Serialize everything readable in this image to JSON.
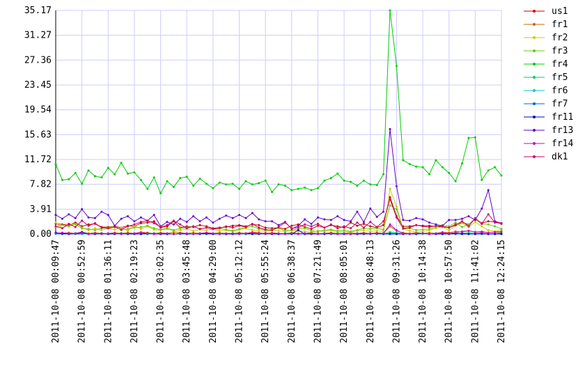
{
  "chart_data": {
    "type": "line",
    "categories": [
      "2011-10-08 00:09:47",
      null,
      null,
      null,
      "2011-10-08 00:52:59",
      null,
      null,
      null,
      "2011-10-08 01:36:11",
      null,
      null,
      null,
      "2011-10-08 02:19:23",
      null,
      null,
      null,
      "2011-10-08 03:02:35",
      null,
      null,
      null,
      "2011-10-08 03:45:48",
      null,
      null,
      null,
      "2011-10-08 04:29:00",
      null,
      null,
      null,
      "2011-10-08 05:12:12",
      null,
      null,
      null,
      "2011-10-08 05:55:24",
      null,
      null,
      null,
      "2011-10-08 06:38:37",
      null,
      null,
      null,
      "2011-10-08 07:21:49",
      null,
      null,
      null,
      "2011-10-08 08:05:01",
      null,
      null,
      null,
      "2011-10-08 08:48:13",
      null,
      null,
      null,
      "2011-10-08 09:31:26",
      null,
      null,
      null,
      "2011-10-08 10:14:38",
      null,
      null,
      null,
      "2011-10-08 10:57:50",
      null,
      null,
      null,
      "2011-10-08 11:41:02",
      null,
      null,
      null,
      "2011-10-08 12:24:15"
    ],
    "ylim": [
      0,
      35.17
    ],
    "yticks": [
      {
        "value": 0,
        "label": "0.00"
      },
      3.91,
      7.82,
      11.72,
      15.63,
      19.54,
      23.45,
      27.36,
      31.27,
      35.17
    ],
    "grid": true,
    "series": [
      {
        "name": "us1",
        "color": "#cc0000",
        "values": [
          1.6,
          1.5,
          1.4,
          1.8,
          1.2,
          1.5,
          1.6,
          1.1,
          1.1,
          1.2,
          1.0,
          1.3,
          1.2,
          1.7,
          1.8,
          2.0,
          1.0,
          1.2,
          2.0,
          1.0,
          1.2,
          1.1,
          1.4,
          1.2,
          0.9,
          1.0,
          1.1,
          1.3,
          1.4,
          1.2,
          1.5,
          1.4,
          1.0,
          0.9,
          1.0,
          0.8,
          1.3,
          1.5,
          1.1,
          0.8,
          1.3,
          1.0,
          1.4,
          1.2,
          1.0,
          1.8,
          1.3,
          1.6,
          1.2,
          1.0,
          1.4,
          5.8,
          2.8,
          1.2,
          1.2,
          1.4,
          1.3,
          1.3,
          1.2,
          1.1,
          1.0,
          1.5,
          1.8,
          1.5,
          2.4,
          1.7,
          2.0,
          1.9,
          1.6
        ]
      },
      {
        "name": "fr1",
        "color": "#cc6600",
        "values": [
          0.2,
          0.1,
          0.2,
          0.1,
          0.3,
          0.1,
          0.2,
          0.1,
          0.1,
          0.2,
          0.1,
          0.2,
          0.1,
          0.3,
          0.2,
          0.1,
          0.2,
          0.1,
          0.3,
          0.2,
          0.1,
          0.2,
          0.1,
          0.2,
          0.1,
          0.2,
          0.1,
          0.1,
          0.2,
          0.1,
          0.3,
          0.2,
          0.1,
          0.2,
          0.1,
          0.1,
          0.2,
          0.1,
          0.1,
          0.2,
          0.1,
          0.1,
          0.2,
          0.1,
          0.1,
          0.2,
          0.1,
          0.2,
          0.1,
          0.2,
          0.1,
          1.2,
          0.5,
          0.2,
          0.1,
          0.2,
          0.1,
          0.2,
          0.1,
          0.3,
          0.2,
          0.4,
          0.3,
          0.5,
          0.3,
          0.4,
          0.2,
          0.3,
          0.2
        ]
      },
      {
        "name": "fr2",
        "color": "#cccc00",
        "values": [
          1.8,
          0.9,
          1.6,
          1.5,
          1.0,
          0.6,
          0.9,
          0.6,
          0.9,
          0.7,
          1.0,
          0.5,
          1.3,
          0.8,
          1.2,
          0.7,
          0.6,
          0.8,
          0.5,
          0.6,
          0.8,
          0.5,
          0.7,
          0.6,
          0.8,
          0.5,
          0.6,
          0.4,
          0.7,
          0.9,
          0.6,
          0.5,
          0.4,
          0.6,
          0.5,
          0.4,
          0.6,
          0.5,
          0.4,
          0.3,
          0.5,
          0.4,
          0.6,
          0.3,
          0.4,
          0.3,
          0.5,
          0.6,
          0.4,
          0.5,
          0.4,
          7.1,
          4.3,
          0.8,
          0.5,
          0.3,
          0.4,
          0.6,
          0.9,
          1.1,
          0.6,
          1.3,
          1.7,
          1.1,
          1.9,
          1.2,
          0.6,
          0.4,
          0.7
        ]
      },
      {
        "name": "fr3",
        "color": "#66cc00",
        "values": [
          1.1,
          1.4,
          1.2,
          1.6,
          0.9,
          0.8,
          0.6,
          0.9,
          1.0,
          1.2,
          0.6,
          0.8,
          1.0,
          1.1,
          1.3,
          0.9,
          0.7,
          0.9,
          0.6,
          0.9,
          1.0,
          1.2,
          0.8,
          1.0,
          0.8,
          0.9,
          0.7,
          0.5,
          0.8,
          1.0,
          1.2,
          0.8,
          0.6,
          0.7,
          0.9,
          0.5,
          0.6,
          0.8,
          0.9,
          0.5,
          0.4,
          0.6,
          0.7,
          0.5,
          0.6,
          0.4,
          0.6,
          0.9,
          0.8,
          0.9,
          0.7,
          4.5,
          3.9,
          0.8,
          0.9,
          0.6,
          0.7,
          0.8,
          1.1,
          1.4,
          1.2,
          1.8,
          1.1,
          1.5,
          2.3,
          1.6,
          1.5,
          1.2,
          0.8
        ]
      },
      {
        "name": "fr4",
        "color": "#00cc00",
        "values": [
          11.0,
          8.5,
          8.6,
          9.6,
          7.9,
          10.0,
          9.1,
          8.9,
          10.4,
          9.4,
          11.2,
          9.5,
          9.7,
          8.5,
          7.1,
          8.9,
          6.4,
          8.3,
          7.4,
          8.8,
          9.0,
          7.6,
          8.7,
          7.9,
          7.2,
          8.1,
          7.8,
          7.9,
          7.1,
          8.3,
          7.8,
          8.0,
          8.4,
          6.6,
          7.8,
          7.6,
          6.9,
          7.1,
          7.3,
          6.9,
          7.2,
          8.4,
          8.8,
          9.5,
          8.4,
          8.2,
          7.6,
          8.4,
          7.8,
          7.7,
          9.4,
          35.17,
          26.4,
          11.6,
          11.0,
          10.6,
          10.5,
          9.4,
          11.6,
          10.5,
          9.6,
          8.3,
          11.1,
          15.1,
          15.2,
          8.5,
          10.0,
          10.5,
          9.2
        ]
      },
      {
        "name": "fr5",
        "color": "#00cc66",
        "values": [
          0.1,
          0.1,
          0.0,
          0.1,
          0.1,
          0.0,
          0.1,
          0.0,
          0.1,
          0.1,
          0.0,
          0.1,
          0.1,
          0.0,
          0.1,
          0.1,
          0.0,
          0.1,
          0.0,
          0.1,
          0.1,
          0.0,
          0.1,
          0.1,
          0.0,
          0.1,
          0.0,
          0.1,
          0.1,
          0.0,
          0.1,
          0.1,
          0.0,
          0.1,
          0.0,
          0.1,
          0.1,
          0.0,
          0.1,
          0.1,
          0.0,
          0.1,
          0.0,
          0.1,
          0.1,
          0.0,
          0.1,
          0.1,
          0.0,
          0.1,
          0.1,
          0.3,
          0.2,
          0.1,
          0.0,
          0.1,
          0.1,
          0.0,
          0.1,
          0.1,
          0.0,
          0.1,
          0.1,
          0.2,
          0.1,
          0.1,
          0.0,
          0.1,
          0.1
        ]
      },
      {
        "name": "fr6",
        "color": "#00cccc",
        "values": [
          0.0,
          0.0,
          0.0,
          0.1,
          0.0,
          0.0,
          0.0,
          0.0,
          0.0,
          0.0,
          0.0,
          0.0,
          0.1,
          0.0,
          0.0,
          0.0,
          0.0,
          0.0,
          0.0,
          0.0,
          0.0,
          0.0,
          0.0,
          0.0,
          0.0,
          0.1,
          0.0,
          0.0,
          0.0,
          0.0,
          0.0,
          0.0,
          0.0,
          0.0,
          0.0,
          0.0,
          0.0,
          0.0,
          0.1,
          0.0,
          0.0,
          0.0,
          0.0,
          0.0,
          0.0,
          0.0,
          0.0,
          0.0,
          0.0,
          0.0,
          0.0,
          0.1,
          0.1,
          0.0,
          0.0,
          0.0,
          0.0,
          0.0,
          0.0,
          0.0,
          0.0,
          0.0,
          0.0,
          0.1,
          0.0,
          0.0,
          0.0,
          0.0,
          0.0
        ]
      },
      {
        "name": "fr7",
        "color": "#0066cc",
        "values": [
          0.1,
          0.0,
          0.0,
          0.0,
          0.1,
          0.0,
          0.0,
          0.0,
          0.0,
          0.1,
          0.0,
          0.0,
          0.0,
          0.0,
          0.0,
          0.1,
          0.0,
          0.0,
          0.0,
          0.0,
          0.0,
          0.0,
          0.1,
          0.0,
          0.0,
          0.0,
          0.0,
          0.0,
          0.1,
          0.0,
          0.0,
          0.0,
          0.0,
          0.0,
          0.0,
          0.1,
          0.0,
          0.0,
          0.0,
          0.0,
          0.0,
          0.1,
          0.0,
          0.0,
          0.0,
          0.0,
          0.0,
          0.0,
          0.1,
          0.0,
          0.0,
          0.1,
          0.0,
          0.0,
          0.0,
          0.0,
          0.1,
          0.0,
          0.0,
          0.0,
          0.0,
          0.0,
          0.1,
          0.0,
          0.0,
          0.0,
          0.0,
          0.0,
          0.1
        ]
      },
      {
        "name": "fr11",
        "color": "#0000cc",
        "values": [
          0.2,
          0.1,
          0.0,
          0.1,
          0.3,
          0.0,
          0.0,
          0.1,
          0.0,
          0.0,
          0.1,
          0.0,
          0.0,
          0.0,
          0.1,
          0.0,
          0.0,
          0.0,
          0.0,
          0.1,
          0.0,
          0.0,
          0.0,
          0.1,
          0.0,
          0.0,
          0.0,
          0.0,
          0.0,
          0.1,
          0.0,
          0.0,
          0.1,
          0.0,
          0.0,
          0.0,
          0.0,
          0.6,
          0.0,
          0.0,
          0.0,
          0.0,
          0.1,
          0.0,
          0.0,
          0.0,
          0.0,
          0.0,
          0.0,
          0.1,
          0.0,
          0.0,
          0.0,
          0.0,
          0.0,
          0.0,
          0.1,
          0.0,
          0.0,
          0.0,
          0.0,
          0.1,
          0.0,
          0.0,
          0.0,
          0.1,
          0.0,
          0.0,
          0.0
        ]
      },
      {
        "name": "fr13",
        "color": "#6600cc",
        "values": [
          3.0,
          2.4,
          3.1,
          2.5,
          3.9,
          2.6,
          2.5,
          3.5,
          3.0,
          1.3,
          2.4,
          2.8,
          2.0,
          2.6,
          2.1,
          3.0,
          1.2,
          1.9,
          1.5,
          2.4,
          1.9,
          2.8,
          2.0,
          2.6,
          1.8,
          2.4,
          2.9,
          2.5,
          3.0,
          2.5,
          3.3,
          2.3,
          2.0,
          2.0,
          1.4,
          1.9,
          0.8,
          1.3,
          2.3,
          1.6,
          2.6,
          2.3,
          2.2,
          2.8,
          2.2,
          2.0,
          3.5,
          1.9,
          4.0,
          2.7,
          3.5,
          16.5,
          7.5,
          2.2,
          2.1,
          2.5,
          2.3,
          1.8,
          1.5,
          1.3,
          2.2,
          2.2,
          2.4,
          2.8,
          2.2,
          4.0,
          6.9,
          2.0,
          1.7
        ]
      },
      {
        "name": "fr14",
        "color": "#cc00cc",
        "values": [
          0.1,
          0.2,
          0.1,
          0.1,
          0.2,
          0.0,
          0.1,
          0.0,
          0.1,
          0.1,
          0.0,
          0.1,
          0.1,
          0.2,
          0.1,
          0.0,
          0.1,
          0.1,
          0.0,
          0.1,
          0.1,
          0.0,
          0.1,
          0.2,
          0.1,
          0.0,
          0.1,
          0.1,
          0.0,
          0.1,
          0.2,
          0.1,
          0.0,
          0.1,
          0.1,
          0.0,
          0.1,
          0.0,
          0.1,
          0.1,
          0.0,
          0.1,
          0.1,
          0.0,
          0.1,
          0.0,
          0.1,
          0.1,
          0.0,
          0.1,
          0.1,
          1.5,
          0.6,
          0.1,
          0.0,
          0.1,
          0.1,
          0.0,
          0.1,
          0.2,
          0.1,
          0.2,
          0.4,
          0.5,
          0.3,
          0.3,
          0.2,
          0.3,
          0.4
        ]
      },
      {
        "name": "dk1",
        "color": "#cc0066",
        "values": [
          1.2,
          0.9,
          1.6,
          1.1,
          2.1,
          1.3,
          1.7,
          1.0,
          0.9,
          1.1,
          0.7,
          1.2,
          1.5,
          1.9,
          2.1,
          1.7,
          1.1,
          1.4,
          2.1,
          1.5,
          0.9,
          1.2,
          0.8,
          1.0,
          0.8,
          0.9,
          1.2,
          1.0,
          1.3,
          1.1,
          1.6,
          1.0,
          0.7,
          0.6,
          1.1,
          1.8,
          0.9,
          1.0,
          1.5,
          1.2,
          1.6,
          1.0,
          1.5,
          0.9,
          1.2,
          0.9,
          1.8,
          1.0,
          1.9,
          1.1,
          2.0,
          5.5,
          2.6,
          0.9,
          1.0,
          1.4,
          1.2,
          1.1,
          1.3,
          1.2,
          1.0,
          1.4,
          2.0,
          1.2,
          2.5,
          1.6,
          3.1,
          1.8,
          1.7
        ]
      }
    ]
  }
}
